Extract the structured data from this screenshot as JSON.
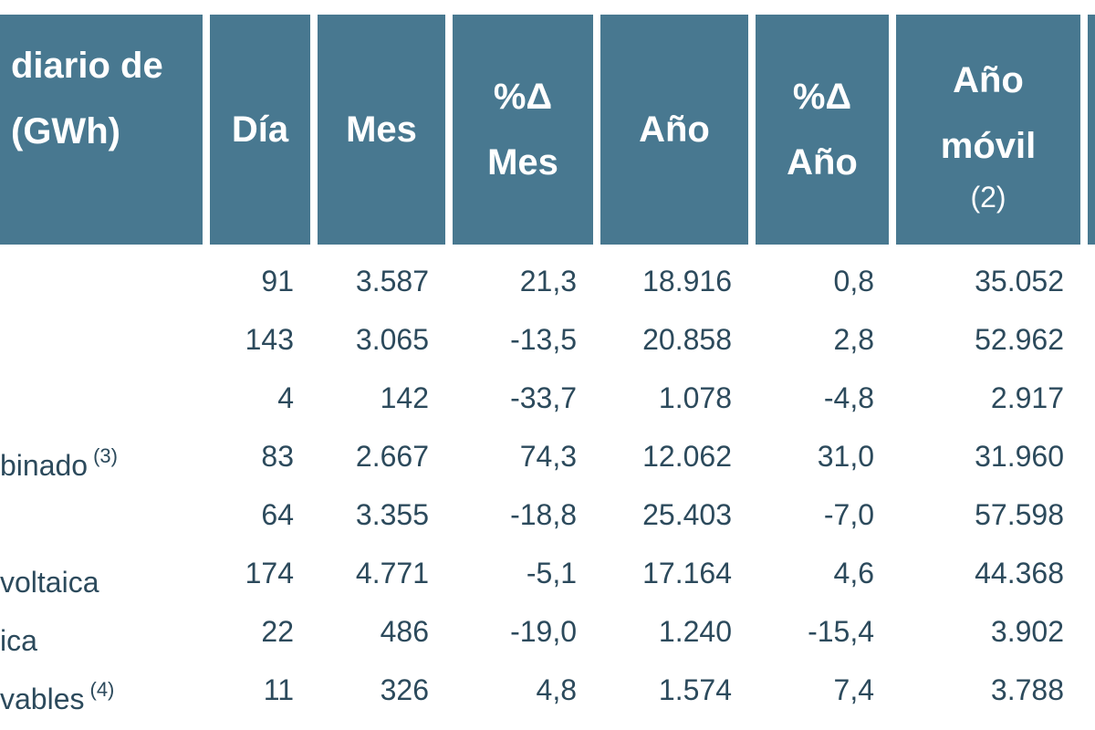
{
  "header": {
    "label_lines": [
      "diario de",
      "(GWh)"
    ],
    "dia": "Día",
    "mes": "Mes",
    "pct_mes_lines": [
      "%Δ",
      "Mes"
    ],
    "anio": "Año",
    "pct_anio_lines": [
      "%Δ",
      "Año"
    ],
    "anio_movil_lines": [
      "Año",
      "móvil"
    ],
    "anio_movil_note": "(2)"
  },
  "rows": [
    {
      "label": "",
      "note": "",
      "dia": "91",
      "mes": "3.587",
      "pct_mes": "21,3",
      "anio": "18.916",
      "pct_anio": "0,8",
      "anio_movil": "35.052"
    },
    {
      "label": "",
      "note": "",
      "dia": "143",
      "mes": "3.065",
      "pct_mes": "-13,5",
      "anio": "20.858",
      "pct_anio": "2,8",
      "anio_movil": "52.962"
    },
    {
      "label": "",
      "note": "",
      "dia": "4",
      "mes": "142",
      "pct_mes": "-33,7",
      "anio": "1.078",
      "pct_anio": "-4,8",
      "anio_movil": "2.917"
    },
    {
      "label": "binado",
      "note": "(3)",
      "dia": "83",
      "mes": "2.667",
      "pct_mes": "74,3",
      "anio": "12.062",
      "pct_anio": "31,0",
      "anio_movil": "31.960"
    },
    {
      "label": "",
      "note": "",
      "dia": "64",
      "mes": "3.355",
      "pct_mes": "-18,8",
      "anio": "25.403",
      "pct_anio": "-7,0",
      "anio_movil": "57.598"
    },
    {
      "label": "voltaica",
      "note": "",
      "dia": "174",
      "mes": "4.771",
      "pct_mes": "-5,1",
      "anio": "17.164",
      "pct_anio": "4,6",
      "anio_movil": "44.368"
    },
    {
      "label": "ica",
      "note": "",
      "dia": "22",
      "mes": "486",
      "pct_mes": "-19,0",
      "anio": "1.240",
      "pct_anio": "-15,4",
      "anio_movil": "3.902"
    },
    {
      "label": "vables",
      "note": "(4)",
      "dia": "11",
      "mes": "326",
      "pct_mes": "4,8",
      "anio": "1.574",
      "pct_anio": "7,4",
      "anio_movil": "3.788"
    }
  ]
}
